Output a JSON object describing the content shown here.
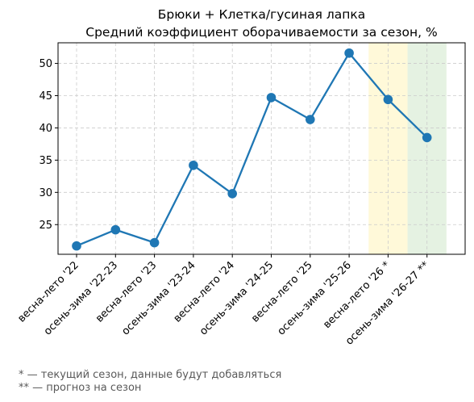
{
  "chart_data": {
    "type": "line",
    "title": "Брюки + Клетка/гусиная лапка",
    "subtitle": "Средний коэффициент оборачиваемости за сезон, %",
    "xlabel": "",
    "ylabel": "",
    "categories": [
      "весна-лето '22",
      "осень-зима '22-23",
      "весна-лето '23",
      "осень-зима '23-24",
      "весна-лето '24",
      "осень-зима '24-25",
      "весна-лето '25",
      "осень-зима '25-26",
      "весна-лето '26 *",
      "осень-зима '26-27 **"
    ],
    "series": [
      {
        "name": "",
        "values": [
          21.7,
          24.2,
          22.2,
          34.2,
          29.8,
          44.7,
          41.3,
          51.6,
          44.4,
          38.5
        ],
        "color": "#1f77b4"
      }
    ],
    "ylim": [
      20.4,
      53.2
    ],
    "yticks": [
      25,
      30,
      35,
      40,
      45,
      50
    ],
    "grid": true,
    "highlight_bands": [
      {
        "category_index": 8,
        "color": "#fff9d9"
      },
      {
        "category_index": 9,
        "color": "#e5f2e2"
      }
    ]
  },
  "footnotes": {
    "current": "* — текущий сезон, данные будут добавляться",
    "forecast": "** — прогноз на сезон"
  }
}
